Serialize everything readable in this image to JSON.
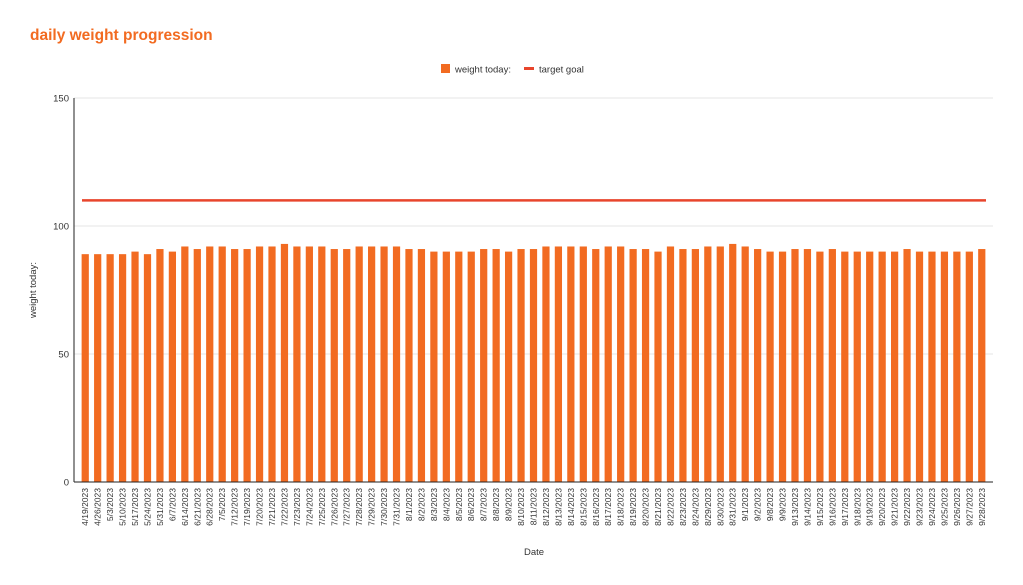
{
  "colors": {
    "title": "#f26b21",
    "bar": "#f26b21",
    "target_line": "#e8452c",
    "grid": "#e6e6e6",
    "axis": "#222222",
    "text": "#333333"
  },
  "chart_data": {
    "type": "bar",
    "title": "daily weight progression",
    "xlabel": "Date",
    "ylabel": "weight today:",
    "ylim": [
      0,
      150
    ],
    "yticks": [
      0,
      50,
      100,
      150
    ],
    "grid": true,
    "legend_position": "top",
    "categories": [
      "4/19/2023",
      "4/26/2023",
      "5/3/2023",
      "5/10/2023",
      "5/17/2023",
      "5/24/2023",
      "5/31/2023",
      "6/7/2023",
      "6/14/2023",
      "6/21/2023",
      "6/28/2023",
      "7/5/2023",
      "7/12/2023",
      "7/19/2023",
      "7/20/2023",
      "7/21/2023",
      "7/22/2023",
      "7/23/2023",
      "7/24/2023",
      "7/25/2023",
      "7/26/2023",
      "7/27/2023",
      "7/28/2023",
      "7/29/2023",
      "7/30/2023",
      "7/31/2023",
      "8/1/2023",
      "8/2/2023",
      "8/3/2023",
      "8/4/2023",
      "8/5/2023",
      "8/6/2023",
      "8/7/2023",
      "8/8/2023",
      "8/9/2023",
      "8/10/2023",
      "8/11/2023",
      "8/12/2023",
      "8/13/2023",
      "8/14/2023",
      "8/15/2023",
      "8/16/2023",
      "8/17/2023",
      "8/18/2023",
      "8/19/2023",
      "8/20/2023",
      "8/21/2023",
      "8/22/2023",
      "8/23/2023",
      "8/24/2023",
      "8/29/2023",
      "8/30/2023",
      "8/31/2023",
      "9/1/2023",
      "9/2/2023",
      "9/8/2023",
      "9/9/2023",
      "9/13/2023",
      "9/14/2023",
      "9/15/2023",
      "9/16/2023",
      "9/17/2023",
      "9/18/2023",
      "9/19/2023",
      "9/20/2023",
      "9/21/2023",
      "9/22/2023",
      "9/23/2023",
      "9/24/2023",
      "9/25/2023",
      "9/26/2023",
      "9/27/2023",
      "9/28/2023"
    ],
    "series": [
      {
        "name": "weight today:",
        "type": "bar",
        "values": [
          89,
          89,
          89,
          89,
          90,
          89,
          91,
          90,
          92,
          91,
          92,
          92,
          91,
          91,
          92,
          92,
          93,
          92,
          92,
          92,
          91,
          91,
          92,
          92,
          92,
          92,
          91,
          91,
          90,
          90,
          90,
          90,
          91,
          91,
          90,
          91,
          91,
          92,
          92,
          92,
          92,
          91,
          92,
          92,
          91,
          91,
          90,
          92,
          91,
          91,
          92,
          92,
          93,
          92,
          91,
          90,
          90,
          91,
          91,
          90,
          91,
          90,
          90,
          90,
          90,
          90,
          91,
          90,
          90,
          90,
          90,
          90,
          91
        ]
      },
      {
        "name": "target goal",
        "type": "line",
        "value": 110
      }
    ]
  }
}
